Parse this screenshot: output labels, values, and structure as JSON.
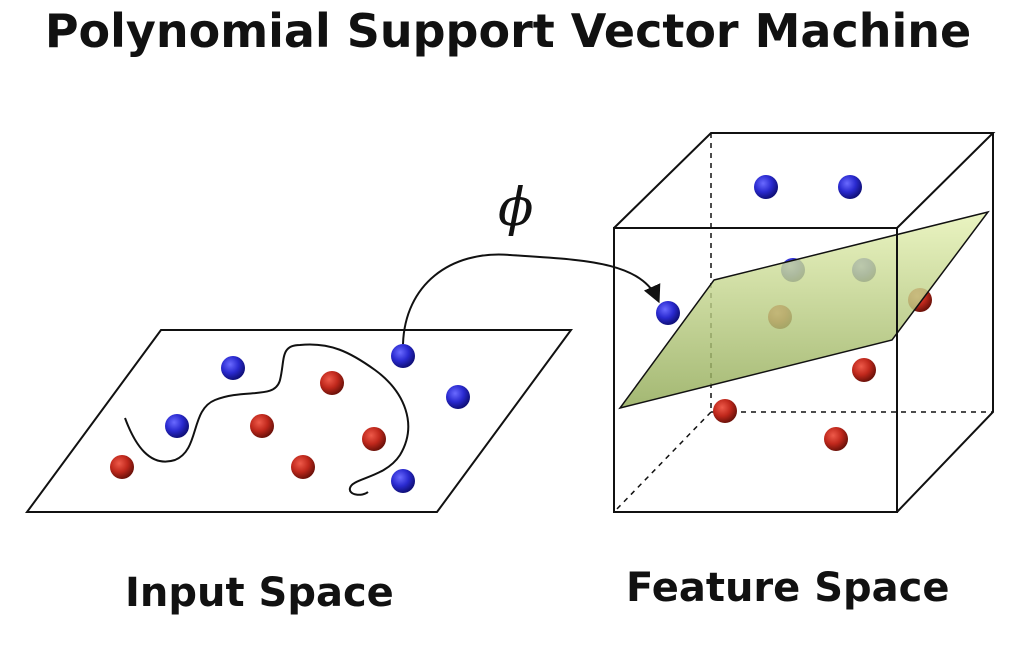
{
  "title": "Polynomial Support Vector Machine",
  "mapping_symbol": "ϕ",
  "input_space": {
    "label": "Input Space",
    "points": [
      {
        "class": "blue"
      },
      {
        "class": "blue"
      },
      {
        "class": "blue"
      },
      {
        "class": "blue"
      },
      {
        "class": "blue"
      },
      {
        "class": "red"
      },
      {
        "class": "red"
      },
      {
        "class": "red"
      },
      {
        "class": "red"
      },
      {
        "class": "red"
      }
    ]
  },
  "feature_space": {
    "label": "Feature Space",
    "points": [
      {
        "class": "blue"
      },
      {
        "class": "blue"
      },
      {
        "class": "blue"
      },
      {
        "class": "blue"
      },
      {
        "class": "blue"
      },
      {
        "class": "red"
      },
      {
        "class": "red"
      },
      {
        "class": "red"
      },
      {
        "class": "red"
      },
      {
        "class": "red"
      }
    ]
  },
  "colors": {
    "blue": "#2a2ad0",
    "red": "#c0281c",
    "plane": "#b8d07a",
    "line": "#111111"
  }
}
